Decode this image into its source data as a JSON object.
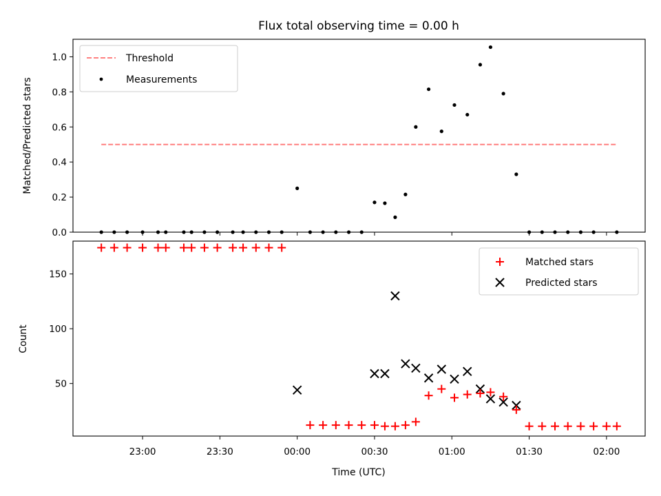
{
  "chart_data": [
    {
      "type": "scatter",
      "title": "Flux total observing time = 0.00 h",
      "xlabel": "",
      "ylabel": "Matched/Predicted stars",
      "xlim": [
        "22:33",
        "02:15"
      ],
      "ylim": [
        0,
        1.1
      ],
      "yticks": [
        0.0,
        0.2,
        0.4,
        0.6,
        0.8,
        1.0
      ],
      "ytick_labels": [
        "0.0",
        "0.2",
        "0.4",
        "0.6",
        "0.8",
        "1.0"
      ],
      "grid": false,
      "legend": {
        "placement": "top-left",
        "entries": [
          "Threshold",
          "Measurements"
        ]
      },
      "threshold": {
        "name": "Threshold",
        "x": [
          "22:44",
          "02:04"
        ],
        "y": 0.5,
        "color": "#ff7f7f",
        "style": "dashed"
      },
      "series": [
        {
          "name": "Measurements",
          "marker": "dot",
          "color": "#000000",
          "x": [
            "22:44",
            "22:49",
            "22:54",
            "23:00",
            "23:06",
            "23:09",
            "23:16",
            "23:19",
            "23:24",
            "23:29",
            "23:35",
            "23:39",
            "23:44",
            "23:49",
            "23:54",
            "00:00",
            "00:05",
            "00:10",
            "00:15",
            "00:20",
            "00:25",
            "00:30",
            "00:34",
            "00:38",
            "00:42",
            "00:46",
            "00:51",
            "00:56",
            "01:01",
            "01:06",
            "01:11",
            "01:15",
            "01:20",
            "01:25",
            "01:30",
            "01:35",
            "01:40",
            "01:45",
            "01:50",
            "01:55",
            "02:04"
          ],
          "y": [
            0,
            0,
            0,
            0,
            0,
            0,
            0,
            0,
            0,
            0,
            0,
            0,
            0,
            0,
            0,
            0.25,
            0,
            0,
            0,
            0,
            0,
            0.17,
            0.165,
            0.085,
            0.215,
            0.6,
            0.815,
            0.575,
            0.725,
            0.67,
            0.955,
            1.055,
            0.79,
            0.33,
            0,
            0,
            0,
            0,
            0,
            0,
            0
          ]
        }
      ]
    },
    {
      "type": "scatter",
      "title": "",
      "xlabel": "Time (UTC)",
      "ylabel": "Count",
      "xlim": [
        "22:33",
        "02:15"
      ],
      "ylim": [
        2,
        180
      ],
      "yticks": [
        50,
        100,
        150
      ],
      "ytick_labels": [
        "50",
        "100",
        "150"
      ],
      "xticks": [
        "23:00",
        "23:30",
        "00:00",
        "00:30",
        "01:00",
        "01:30",
        "02:00"
      ],
      "xtick_labels": [
        "23:00",
        "23:30",
        "00:00",
        "00:30",
        "01:00",
        "01:30",
        "02:00"
      ],
      "grid": false,
      "legend": {
        "placement": "top-right",
        "entries": [
          "Matched stars",
          "Predicted stars"
        ]
      },
      "series": [
        {
          "name": "Matched stars",
          "marker": "plus",
          "color": "#ff0000",
          "x": [
            "22:44",
            "22:49",
            "22:54",
            "23:00",
            "23:06",
            "23:09",
            "23:16",
            "23:19",
            "23:24",
            "23:29",
            "23:35",
            "23:39",
            "23:44",
            "23:49",
            "23:54",
            "00:05",
            "00:10",
            "00:15",
            "00:20",
            "00:25",
            "00:30",
            "00:34",
            "00:38",
            "00:42",
            "00:46",
            "00:51",
            "00:56",
            "01:01",
            "01:06",
            "01:11",
            "01:15",
            "01:20",
            "01:25",
            "01:30",
            "01:35",
            "01:40",
            "01:45",
            "01:50",
            "01:55",
            "02:00",
            "02:04"
          ],
          "y": [
            174,
            174,
            174,
            174,
            174,
            174,
            174,
            174,
            174,
            174,
            174,
            174,
            174,
            174,
            174,
            12,
            12,
            12,
            12,
            12,
            12,
            11,
            11,
            12,
            15,
            39,
            45,
            37,
            40,
            41,
            42,
            38,
            26,
            11,
            11,
            11,
            11,
            11,
            11,
            11,
            11
          ]
        },
        {
          "name": "Predicted stars",
          "marker": "x",
          "color": "#000000",
          "x": [
            "00:00",
            "00:30",
            "00:34",
            "00:38",
            "00:42",
            "00:46",
            "00:51",
            "00:56",
            "01:01",
            "01:06",
            "01:11",
            "01:15",
            "01:20",
            "01:25"
          ],
          "y": [
            44,
            59,
            59,
            130,
            68,
            64,
            55,
            63,
            54,
            61,
            45,
            36,
            33,
            30
          ]
        }
      ]
    }
  ]
}
